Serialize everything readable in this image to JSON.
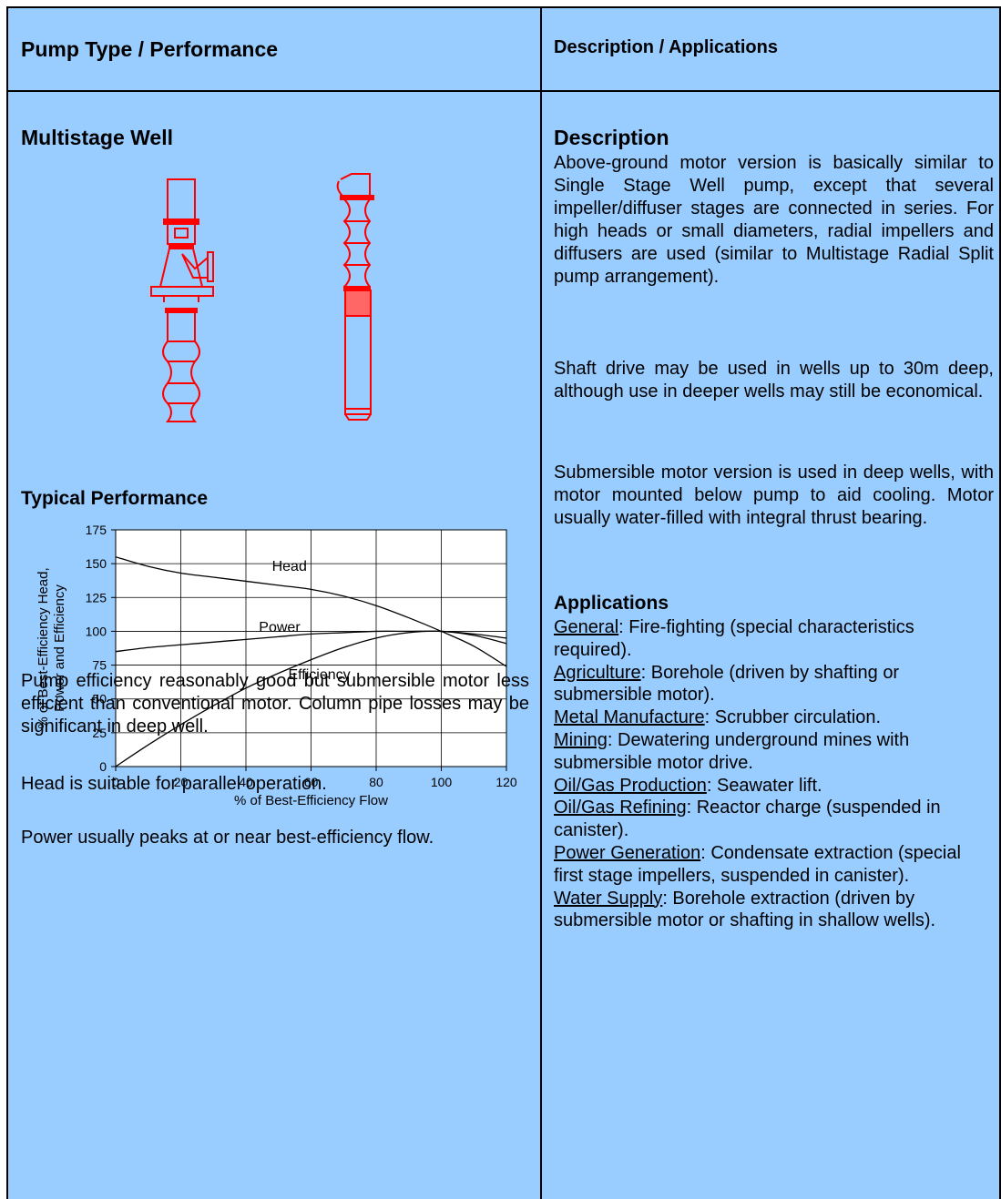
{
  "header": {
    "left": "Pump Type / Performance",
    "right": "Description / Applications"
  },
  "left": {
    "pump_name": "Multistage Well",
    "performance_title": "Typical Performance",
    "notes": [
      "Pump efficiency reasonably good but submersible motor less efficient than conventional motor. Column pipe losses may be significant in deep well.",
      "Head is suitable for parallel operation.",
      "Power usually peaks at or near best-efficiency flow."
    ]
  },
  "right": {
    "description_title": "Description",
    "description": [
      "Above-ground motor version is basically similar to Single Stage Well pump, except that several impeller/diffuser stages are connected in series. For high heads or small diameters, radial impellers and diffusers are used (similar to Multistage Radial Split pump arrangement).",
      "Shaft drive may be used in wells up to 30m deep, although use in deeper wells may still be economical.",
      "Submersible motor version is used in deep wells, with motor mounted below pump to aid cooling. Motor usually water-filled with integral thrust bearing."
    ],
    "applications_title": "Applications",
    "applications": [
      {
        "category": "General",
        "text": ": Fire-fighting (special characteristics required)."
      },
      {
        "category": "Agriculture",
        "text": ": Borehole (driven by shafting or submersible motor)."
      },
      {
        "category": "Metal Manufacture",
        "text": ": Scrubber circulation."
      },
      {
        "category": "Mining",
        "text": ": Dewatering underground mines with submersible motor drive."
      },
      {
        "category": "Oil/Gas Production",
        "text": ": Seawater lift."
      },
      {
        "category": "Oil/Gas Refining",
        "text": ": Reactor charge (suspended in canister)."
      },
      {
        "category": "Power Generation",
        "text": ": Condensate extraction (special first stage impellers, suspended in canister)."
      },
      {
        "category": "Water Supply",
        "text": ": Borehole extraction (driven by submersible motor or shafting in shallow wells)."
      }
    ]
  },
  "colors": {
    "background": "#99ccff",
    "pump_drawing": "#ff0000",
    "lines": "#000000"
  },
  "chart_data": {
    "type": "line",
    "xlabel": "% of Best-Efficiency Flow",
    "ylabel": "% of Best-Efficiency Head, Power and Efficiency",
    "xlim": [
      0,
      120
    ],
    "ylim": [
      0,
      175
    ],
    "xticks": [
      0,
      20,
      40,
      60,
      80,
      100,
      120
    ],
    "yticks": [
      0,
      25,
      50,
      75,
      100,
      125,
      150,
      175
    ],
    "grid": true,
    "x": [
      0,
      10,
      20,
      30,
      40,
      50,
      60,
      70,
      80,
      90,
      100,
      110,
      120
    ],
    "series": [
      {
        "name": "Head",
        "label_at": [
          48,
          148
        ],
        "values": [
          155,
          148,
          143,
          140,
          137,
          134,
          131,
          126,
          119,
          110,
          100,
          89,
          74
        ]
      },
      {
        "name": "Power",
        "label_at": [
          44,
          103
        ],
        "values": [
          85,
          88,
          90,
          92,
          94,
          96,
          98,
          99,
          100,
          100,
          100,
          98,
          95
        ]
      },
      {
        "name": "Efficiency",
        "label_at": [
          53,
          68
        ],
        "values": [
          0,
          16,
          31,
          45,
          58,
          69,
          79,
          88,
          95,
          99,
          100,
          97,
          91
        ]
      }
    ]
  }
}
